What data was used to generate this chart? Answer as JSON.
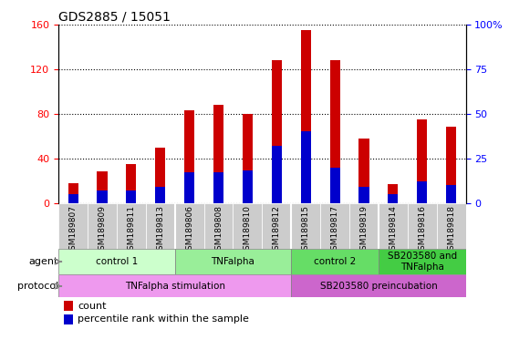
{
  "title": "GDS2885 / 15051",
  "samples": [
    "GSM189807",
    "GSM189809",
    "GSM189811",
    "GSM189813",
    "GSM189806",
    "GSM189808",
    "GSM189810",
    "GSM189812",
    "GSM189815",
    "GSM189817",
    "GSM189819",
    "GSM189814",
    "GSM189816",
    "GSM189818"
  ],
  "count_values": [
    18,
    28,
    35,
    50,
    83,
    88,
    80,
    128,
    155,
    128,
    58,
    17,
    75,
    68
  ],
  "percentile_values": [
    5,
    7,
    7,
    9,
    17,
    17,
    18,
    32,
    40,
    20,
    9,
    5,
    12,
    10
  ],
  "ylim_left": [
    0,
    160
  ],
  "ylim_right": [
    0,
    100
  ],
  "yticks_left": [
    0,
    40,
    80,
    120,
    160
  ],
  "yticks_right": [
    0,
    25,
    50,
    75,
    100
  ],
  "ytick_labels_right": [
    "0",
    "25",
    "50",
    "75",
    "100%"
  ],
  "bar_color": "#cc0000",
  "percentile_color": "#0000cc",
  "bar_width": 0.35,
  "agent_groups": [
    {
      "label": "control 1",
      "start": 0,
      "end": 3,
      "color": "#ccffcc"
    },
    {
      "label": "TNFalpha",
      "start": 4,
      "end": 7,
      "color": "#99ee99"
    },
    {
      "label": "control 2",
      "start": 8,
      "end": 10,
      "color": "#66dd66"
    },
    {
      "label": "SB203580 and\nTNFalpha",
      "start": 11,
      "end": 13,
      "color": "#44cc44"
    }
  ],
  "protocol_groups": [
    {
      "label": "TNFalpha stimulation",
      "start": 0,
      "end": 7,
      "color": "#ee99ee"
    },
    {
      "label": "SB203580 preincubation",
      "start": 8,
      "end": 13,
      "color": "#cc66cc"
    }
  ],
  "agent_label": "agent",
  "protocol_label": "protocol",
  "legend_count_label": "count",
  "legend_percentile_label": "percentile rank within the sample",
  "grid_color": "black",
  "xtick_bg_color": "#cccccc"
}
